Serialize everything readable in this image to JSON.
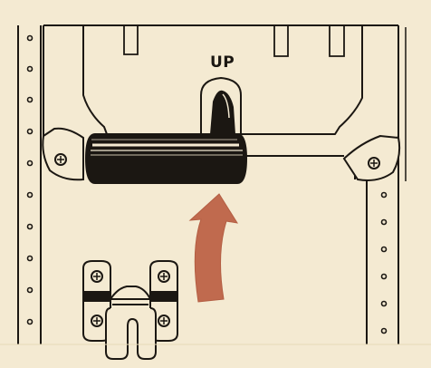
{
  "labels": {
    "up": "UP"
  },
  "colors": {
    "paper": "#f4ead2",
    "ink": "#1b1712",
    "arrow": "#c06a4e",
    "handle_dark": "#1b1712"
  },
  "icons": {
    "arrow": "curved-up-arrow-icon"
  }
}
